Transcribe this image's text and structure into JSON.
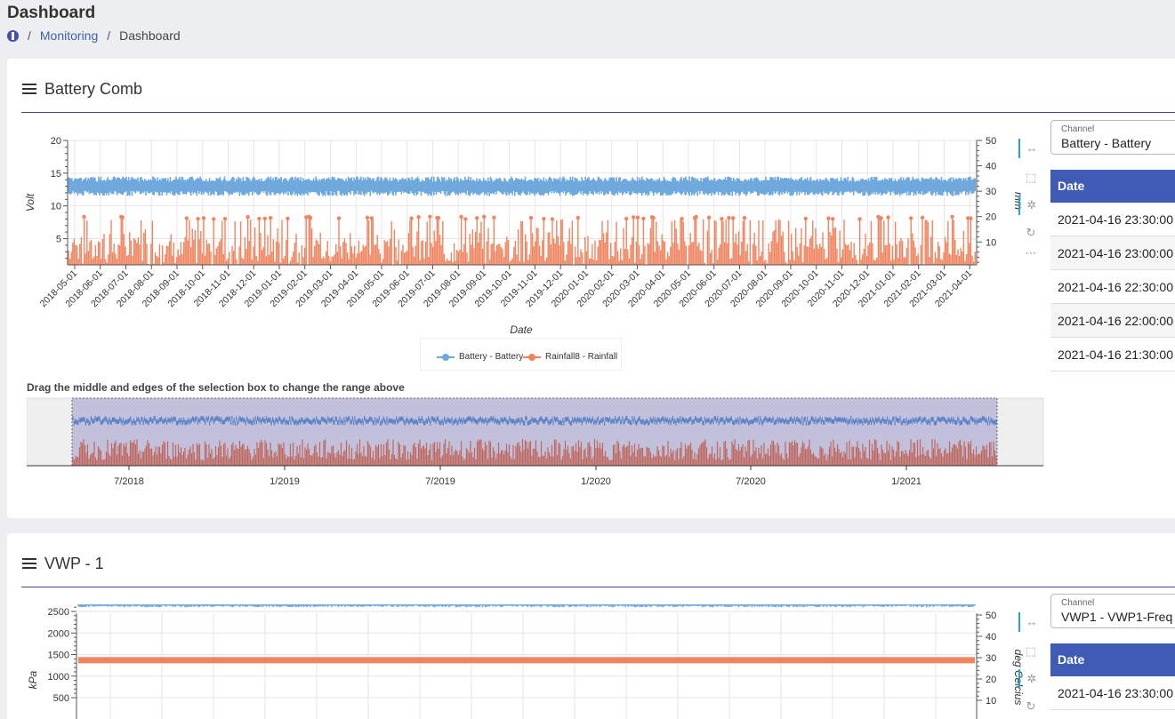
{
  "page": {
    "title": "Dashboard",
    "breadcrumb": {
      "home_icon": "home-icon",
      "items": [
        "Monitoring",
        "Dashboard"
      ]
    }
  },
  "cards": [
    {
      "title": "Battery Comb",
      "select": {
        "label": "Channel",
        "value": "Battery - Battery"
      },
      "table": {
        "header": "Date",
        "rows": [
          "2021-04-16 23:30:00",
          "2021-04-16 23:00:00",
          "2021-04-16 22:30:00",
          "2021-04-16 22:00:00",
          "2021-04-16 21:30:00"
        ]
      },
      "navigator_hint": "Drag the middle and edges of the selection box to change the range above",
      "toolbar": [
        "pan-icon",
        "box-zoom-icon",
        "wheel-zoom-icon",
        "reset-icon",
        "more-icon"
      ]
    },
    {
      "title": "VWP - 1",
      "select": {
        "label": "Channel",
        "value": "VWP1 - VWP1-Freq"
      },
      "table": {
        "header": "Date",
        "rows": [
          "2021-04-16 23:30:00"
        ]
      },
      "toolbar": [
        "pan-icon",
        "box-zoom-icon",
        "wheel-zoom-icon",
        "reset-icon"
      ]
    }
  ],
  "chart_data": [
    {
      "type": "line",
      "xlabel": "Date",
      "ylabel": "Volt",
      "y2label": "mm",
      "ylim": [
        1,
        20
      ],
      "y2lim": [
        1,
        50
      ],
      "yticks": [
        5,
        10,
        15,
        20
      ],
      "y2ticks": [
        10,
        20,
        30,
        40,
        50
      ],
      "x_ticks": [
        "2018-05-01",
        "2018-06-01",
        "2018-07-01",
        "2018-08-01",
        "2018-09-01",
        "2018-10-01",
        "2018-11-01",
        "2018-12-01",
        "2019-01-01",
        "2019-02-01",
        "2019-03-01",
        "2019-04-01",
        "2019-05-01",
        "2019-06-01",
        "2019-07-01",
        "2019-08-01",
        "2019-09-01",
        "2019-10-01",
        "2019-11-01",
        "2019-12-01",
        "2020-01-01",
        "2020-02-01",
        "2020-03-01",
        "2020-04-01",
        "2020-05-01",
        "2020-06-01",
        "2020-07-01",
        "2020-08-01",
        "2020-09-01",
        "2020-10-01",
        "2020-11-01",
        "2020-12-01",
        "2021-01-01",
        "2021-02-01",
        "2021-03-01",
        "2021-04-01"
      ],
      "series": [
        {
          "name": "Battery - Battery",
          "color": "#6fa8dc",
          "axis": "left",
          "band": [
            11.5,
            14.5
          ]
        },
        {
          "name": "Rainfall8 - Rainfall",
          "color": "#ef8560",
          "axis": "right",
          "max": 20
        }
      ],
      "legend": "bottom-center",
      "navigator": {
        "ticks": [
          "7/2018",
          "1/2019",
          "7/2019",
          "1/2020",
          "7/2020",
          "1/2021"
        ]
      }
    },
    {
      "type": "line",
      "ylabel": "kPa",
      "y2label": "deg Celcius",
      "yticks": [
        500,
        1000,
        1500,
        2000,
        2500
      ],
      "y2ticks": [
        10,
        20,
        30,
        40,
        50
      ],
      "series": [
        {
          "color": "#6fa8dc",
          "axis": "left",
          "level": 2700
        },
        {
          "color": "#ef8560",
          "axis": "left",
          "level": 1380
        }
      ]
    }
  ]
}
